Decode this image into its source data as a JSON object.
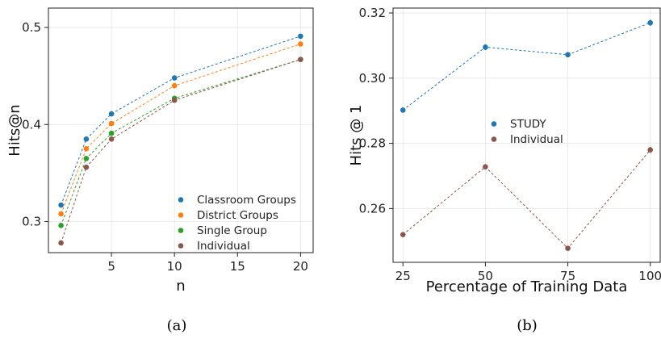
{
  "captions": {
    "left": "(a)",
    "right": "(b)"
  },
  "chart_data": [
    {
      "type": "line",
      "xlabel": "n",
      "ylabel": "Hits@n",
      "xlim": [
        0,
        21
      ],
      "ylim": [
        0.268,
        0.52
      ],
      "xticks": [
        5,
        10,
        15,
        20
      ],
      "yticks": [
        0.3,
        0.4,
        0.5
      ],
      "grid": true,
      "line_style": "dashed",
      "legend_position": "lower-right",
      "x": [
        1,
        3,
        5,
        10,
        20
      ],
      "series": [
        {
          "name": "Classroom Groups",
          "color": "#1f77b4",
          "values": [
            0.317,
            0.385,
            0.411,
            0.448,
            0.491
          ]
        },
        {
          "name": "District Groups",
          "color": "#ff7f0e",
          "values": [
            0.308,
            0.375,
            0.401,
            0.44,
            0.483
          ]
        },
        {
          "name": "Single Group",
          "color": "#2ca02c",
          "values": [
            0.296,
            0.365,
            0.391,
            0.427,
            0.467
          ]
        },
        {
          "name": "Individual",
          "color": "#8c564b",
          "values": [
            0.278,
            0.356,
            0.385,
            0.425,
            0.467
          ]
        }
      ]
    },
    {
      "type": "line",
      "xlabel": "Percentage of Training Data",
      "ylabel": "Hits @ 1",
      "xlim": [
        22,
        103
      ],
      "ylim": [
        0.2435,
        0.3215
      ],
      "xticks": [
        25,
        50,
        75,
        100
      ],
      "yticks": [
        0.26,
        0.28,
        0.3,
        0.32
      ],
      "ytick_labels": [
        "0.26",
        "0.28",
        "0.30",
        "0.32"
      ],
      "grid": true,
      "line_style": "dashed",
      "error_bars": true,
      "legend_position": "center",
      "x": [
        25,
        50,
        75,
        100
      ],
      "series": [
        {
          "name": "STUDY",
          "color": "#1f77b4",
          "values": [
            0.2902,
            0.3095,
            0.3072,
            0.317
          ],
          "errors": [
            0.0008,
            0.0009,
            0.0008,
            0.0009
          ]
        },
        {
          "name": "Individual",
          "color": "#8c564b",
          "values": [
            0.252,
            0.2728,
            0.2478,
            0.278
          ],
          "errors": [
            0.0007,
            0.0008,
            0.0005,
            0.0009
          ]
        }
      ]
    }
  ]
}
